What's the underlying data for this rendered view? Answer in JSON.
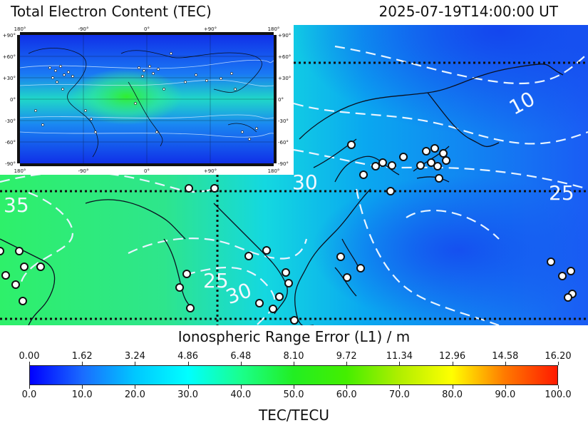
{
  "header": {
    "title": "Total Electron Content (TEC)",
    "timestamp": "2025-07-19T14:00:00 UT"
  },
  "inset_map": {
    "lon_labels": [
      "180°",
      "-90°",
      "0°",
      "+90°",
      "180°"
    ],
    "lat_labels": [
      "+90°",
      "+60°",
      "+30°",
      "0°",
      "-30°",
      "-60°",
      "-90°"
    ]
  },
  "main_map": {
    "contour_labels": [
      "10",
      "25",
      "35",
      "30",
      "25",
      "30"
    ]
  },
  "range_axis": {
    "label": "Ionospheric Range Error (L1) / m",
    "ticks": [
      "0.00",
      "1.62",
      "3.24",
      "4.86",
      "6.48",
      "8.10",
      "9.72",
      "11.34",
      "12.96",
      "14.58",
      "16.20"
    ]
  },
  "tec_axis": {
    "label": "TEC/TECU",
    "ticks": [
      "0.0",
      "10.0",
      "20.0",
      "30.0",
      "40.0",
      "50.0",
      "60.0",
      "70.0",
      "80.0",
      "90.0",
      "100.0"
    ]
  },
  "colors": {
    "low": "#0000ff",
    "mid": "#22ee22",
    "high": "#ff1a00"
  }
}
